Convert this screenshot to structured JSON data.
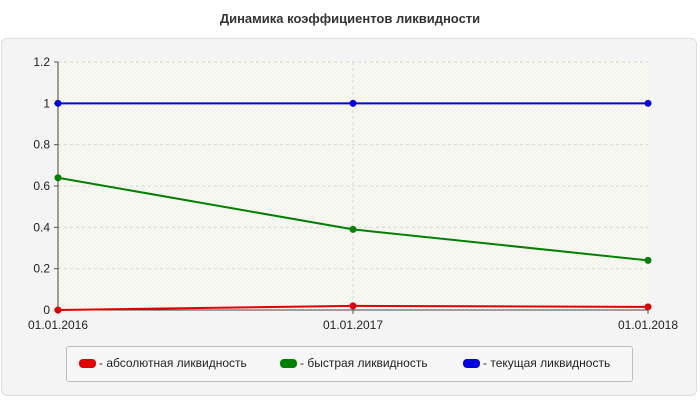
{
  "title": "Динамика коэффициентов ликвидности",
  "chart_data": {
    "type": "line",
    "title": "Динамика коэффициентов ликвидности",
    "xlabel": "",
    "ylabel": "",
    "x": [
      "01.01.2016",
      "01.01.2017",
      "01.01.2018"
    ],
    "ylim": [
      0,
      1.2
    ],
    "yticks": [
      "0",
      "0.2",
      "0.4",
      "0.6",
      "0.8",
      "1",
      "1.2"
    ],
    "grid": true,
    "legend_position": "bottom",
    "series": [
      {
        "name": "- абсолютная ликвидность",
        "color": "#e00000",
        "values": [
          0.0,
          0.02,
          0.015
        ]
      },
      {
        "name": "- быстрая ликвидность",
        "color": "#008000",
        "values": [
          0.64,
          0.39,
          0.24
        ]
      },
      {
        "name": "- текущая ликвидность",
        "color": "#0000e0",
        "values": [
          1.0,
          1.0,
          1.0
        ]
      }
    ]
  }
}
